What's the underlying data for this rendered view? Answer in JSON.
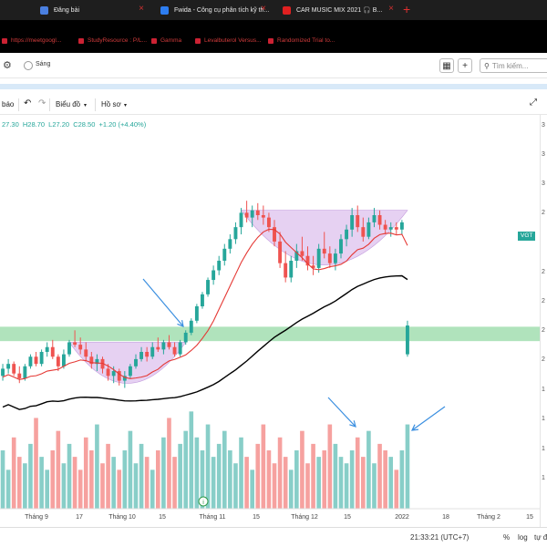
{
  "browser": {
    "tabs": [
      {
        "title": "Đăng bài",
        "favicon_color": "#4a7fe0"
      },
      {
        "title": "Fwida - Công cụ phân tích kỹ th...",
        "favicon_color": "#2d7df0"
      },
      {
        "title": "CAR MUSIC MIX 2021 🎧 B...",
        "favicon_color": "#e02020"
      }
    ],
    "new_tab_label": "+",
    "bookmarks": [
      "https://meetgoogl...",
      "StudyResource : P/L...",
      "Gamma",
      "Levalbuterol Versus...",
      "Randomized Trial to..."
    ]
  },
  "toolbar": {
    "toggle_label": "Sáng",
    "search_placeholder": "Tìm kiếm..."
  },
  "chart_toolbar": {
    "alert_label": "báo",
    "chart_type_label": "Biểu đồ",
    "profile_label": "Hồ sơ"
  },
  "legend": {
    "open": "27.30",
    "high": "H28.70",
    "low": "L27.20",
    "close": "C28.50",
    "change": "+1.20 (+4.40%)"
  },
  "price_tag": "VGT",
  "axis_edge_digits": [
    "3",
    "3",
    "3",
    "2",
    "2",
    "2",
    "2",
    "2",
    "1",
    "1",
    "1",
    "1"
  ],
  "colors": {
    "up": "#26a69a",
    "down": "#ef5350",
    "ma_fast": "#e53935",
    "ma_slow": "#000000",
    "support_zone": "#8fd7a0",
    "pattern_fill": "#d7b3ea",
    "annotation_arrow": "#3b8fe0"
  },
  "chart_data": {
    "type": "candlestick",
    "x_ticks": [
      "Tháng 9",
      "17",
      "Tháng 10",
      "15",
      "Tháng 11",
      "15",
      "Tháng 12",
      "15",
      "2022",
      "18",
      "Tháng 2",
      "15"
    ],
    "candles": [
      [
        26.4,
        26.9,
        26.2,
        26.7
      ],
      [
        26.7,
        27.1,
        26.5,
        26.9
      ],
      [
        26.9,
        27.0,
        26.4,
        26.5
      ],
      [
        26.5,
        26.8,
        26.1,
        26.3
      ],
      [
        26.3,
        26.9,
        26.2,
        26.8
      ],
      [
        26.8,
        27.3,
        26.7,
        27.2
      ],
      [
        27.2,
        27.4,
        26.8,
        26.9
      ],
      [
        26.9,
        27.5,
        26.8,
        27.4
      ],
      [
        27.4,
        27.8,
        27.2,
        27.6
      ],
      [
        27.6,
        27.9,
        27.1,
        27.2
      ],
      [
        27.2,
        27.3,
        26.6,
        26.8
      ],
      [
        26.8,
        27.5,
        26.7,
        27.3
      ],
      [
        27.3,
        27.9,
        27.2,
        27.8
      ],
      [
        27.8,
        28.3,
        27.6,
        27.7
      ],
      [
        27.7,
        28.0,
        27.3,
        27.5
      ],
      [
        27.5,
        27.8,
        27.0,
        27.2
      ],
      [
        27.2,
        27.4,
        26.7,
        26.9
      ],
      [
        26.9,
        27.3,
        26.6,
        27.1
      ],
      [
        27.1,
        27.2,
        26.5,
        26.7
      ],
      [
        26.7,
        26.9,
        26.2,
        26.4
      ],
      [
        26.4,
        26.8,
        26.1,
        26.6
      ],
      [
        26.6,
        26.7,
        26.0,
        26.2
      ],
      [
        26.2,
        26.6,
        25.9,
        26.4
      ],
      [
        26.4,
        26.9,
        26.3,
        26.8
      ],
      [
        26.8,
        27.3,
        26.7,
        27.1
      ],
      [
        27.1,
        27.6,
        27.0,
        27.4
      ],
      [
        27.4,
        27.6,
        27.0,
        27.2
      ],
      [
        27.2,
        27.8,
        27.1,
        27.6
      ],
      [
        27.6,
        28.0,
        27.4,
        27.5
      ],
      [
        27.5,
        27.9,
        27.3,
        27.8
      ],
      [
        27.8,
        28.1,
        27.5,
        27.6
      ],
      [
        27.6,
        27.8,
        27.2,
        27.3
      ],
      [
        27.3,
        27.9,
        27.2,
        27.8
      ],
      [
        27.8,
        28.3,
        27.7,
        28.2
      ],
      [
        28.2,
        28.8,
        28.1,
        28.7
      ],
      [
        28.7,
        29.4,
        28.6,
        29.3
      ],
      [
        29.3,
        29.9,
        29.2,
        29.8
      ],
      [
        29.8,
        30.5,
        29.7,
        30.4
      ],
      [
        30.4,
        31.0,
        30.2,
        30.8
      ],
      [
        30.8,
        31.4,
        30.6,
        31.2
      ],
      [
        31.2,
        31.9,
        31.0,
        31.7
      ],
      [
        31.7,
        32.3,
        31.5,
        32.1
      ],
      [
        32.1,
        32.8,
        31.9,
        32.6
      ],
      [
        32.6,
        33.4,
        32.3,
        33.2
      ],
      [
        33.2,
        33.7,
        32.8,
        33.0
      ],
      [
        33.0,
        33.5,
        32.6,
        33.3
      ],
      [
        33.3,
        33.6,
        32.9,
        33.1
      ],
      [
        33.1,
        33.5,
        32.7,
        33.0
      ],
      [
        33.0,
        33.2,
        32.4,
        32.6
      ],
      [
        32.6,
        32.9,
        31.8,
        32.0
      ],
      [
        32.0,
        32.4,
        30.9,
        31.1
      ],
      [
        31.1,
        31.6,
        30.3,
        30.5
      ],
      [
        30.5,
        31.4,
        30.3,
        31.2
      ],
      [
        31.2,
        31.9,
        30.9,
        31.6
      ],
      [
        31.6,
        32.2,
        31.2,
        31.4
      ],
      [
        31.4,
        31.8,
        30.8,
        31.0
      ],
      [
        31.0,
        31.4,
        30.6,
        30.9
      ],
      [
        30.9,
        31.9,
        30.7,
        31.7
      ],
      [
        31.7,
        32.4,
        31.3,
        31.5
      ],
      [
        31.5,
        31.8,
        30.9,
        31.1
      ],
      [
        31.1,
        31.7,
        30.8,
        31.5
      ],
      [
        31.5,
        32.3,
        31.3,
        32.1
      ],
      [
        32.1,
        32.7,
        31.8,
        32.5
      ],
      [
        32.5,
        33.4,
        32.2,
        33.1
      ],
      [
        33.1,
        33.5,
        32.4,
        32.6
      ],
      [
        32.6,
        33.0,
        32.0,
        32.2
      ],
      [
        32.2,
        33.0,
        32.1,
        32.8
      ],
      [
        32.8,
        33.4,
        32.6,
        33.1
      ],
      [
        33.1,
        33.3,
        32.5,
        32.7
      ],
      [
        32.7,
        32.9,
        32.3,
        32.5
      ],
      [
        32.5,
        32.8,
        32.2,
        32.6
      ],
      [
        32.6,
        32.8,
        32.3,
        32.5
      ],
      [
        32.5,
        32.9,
        32.3,
        32.8
      ],
      [
        27.3,
        28.7,
        27.2,
        28.5
      ]
    ],
    "volume": [
      9,
      6,
      11,
      8,
      7,
      10,
      14,
      8,
      6,
      9,
      12,
      7,
      10,
      8,
      6,
      11,
      9,
      13,
      7,
      10,
      8,
      6,
      9,
      12,
      7,
      10,
      8,
      6,
      9,
      11,
      14,
      8,
      10,
      12,
      15,
      11,
      9,
      13,
      8,
      10,
      12,
      9,
      7,
      11,
      8,
      6,
      10,
      13,
      9,
      7,
      11,
      8,
      6,
      9,
      12,
      7,
      10,
      8,
      9,
      13,
      10,
      8,
      7,
      9,
      11,
      8,
      12,
      7,
      10,
      9,
      8,
      6,
      9,
      13
    ],
    "support_zone": [
      27.85,
      28.45
    ],
    "ma_fast_offset": 0.35,
    "ma_slow_offset": 1.6
  },
  "bottom_bar": {
    "time": "21:33:21 (UTC+7)",
    "percent_label": "%",
    "log_label": "log",
    "auto_label": "tự đ"
  }
}
